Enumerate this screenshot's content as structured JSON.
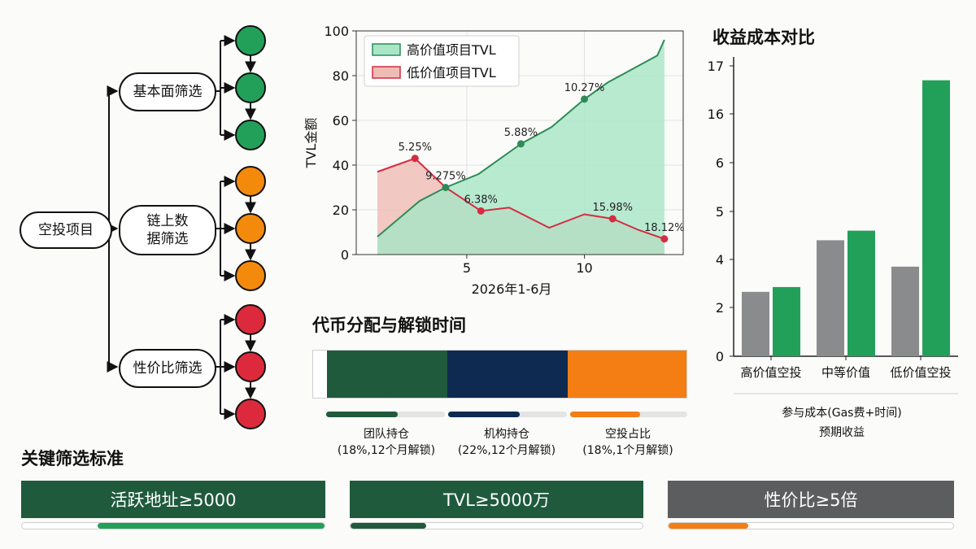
{
  "flow": {
    "root": "空投项目",
    "branches": [
      {
        "label": "基本面筛选",
        "color": "#22a05a",
        "nodes": 3
      },
      {
        "label": "链上数\n据筛选",
        "color": "#f48a0c",
        "nodes": 3
      },
      {
        "label": "性价比筛选",
        "color": "#dc2a3c",
        "nodes": 3
      }
    ]
  },
  "tvl_chart": {
    "ylabel": "TVL金额",
    "xlabel": "2026年1-6月",
    "x_ticks": [
      "5",
      "10"
    ],
    "y_ticks": [
      "0",
      "20",
      "40",
      "60",
      "80",
      "100"
    ],
    "legend": [
      "高价值项目TVL",
      "低价值项目TVL"
    ]
  },
  "cost_chart": {
    "title": "收益成本对比",
    "y_ticks": [
      "0",
      "2",
      "4",
      "5",
      "6",
      "16",
      "17"
    ],
    "categories": [
      "高价值空投",
      "中等价值",
      "低价值空投"
    ],
    "legend": [
      "参与成本(Gas费+时间)",
      "预期收益"
    ]
  },
  "allocation": {
    "title": "代币分配与解锁时间",
    "segments": [
      {
        "name": "团队持仓",
        "detail": "(18%,12个月解锁)",
        "color": "#1f5a3c",
        "unlock": 0.6
      },
      {
        "name": "机构持仓",
        "detail": "(22%,12个月解锁)",
        "color": "#0e2a50",
        "unlock": 0.6
      },
      {
        "name": "空投占比",
        "detail": "(18%,1个月解锁)",
        "color": "#f47d14",
        "unlock": 0.6
      }
    ]
  },
  "criteria": {
    "title": "关键筛选标准",
    "items": [
      {
        "label": "活跃地址≥5000",
        "color": "#1f5a3c",
        "fill_color": "#22a05a",
        "progress_from": 0.25,
        "progress_to": 1.0
      },
      {
        "label": "TVL≥5000万",
        "color": "#1f5a3c",
        "fill_color": "#1f5a3c",
        "progress_from": 0.0,
        "progress_to": 0.26
      },
      {
        "label": "性价比≥5倍",
        "color": "#5c5d5f",
        "fill_color": "#f47d14",
        "progress_from": 0.0,
        "progress_to": 0.28
      }
    ]
  },
  "chart_data": [
    {
      "type": "area",
      "title": "",
      "xlabel": "2026年1-6月",
      "ylabel": "TVL金额",
      "xlim": [
        0.3,
        14.2
      ],
      "ylim": [
        0,
        100
      ],
      "grid": true,
      "legend_position": "top-left",
      "series": [
        {
          "name": "高价值项目TVL",
          "color": "#2e8b57",
          "fill": "#a8e6c6",
          "x": [
            1.2,
            3.0,
            4.1,
            5.5,
            7.3,
            8.6,
            10.0,
            11.0,
            12.4,
            13.1,
            13.4
          ],
          "y": [
            8,
            24,
            30,
            36,
            49.5,
            57,
            69.5,
            77,
            85,
            89,
            96
          ]
        },
        {
          "name": "低价值项目TVL",
          "color": "#d42c43",
          "fill": "#efbcb4",
          "x": [
            1.2,
            2.8,
            4.1,
            5.6,
            6.8,
            8.5,
            10.0,
            11.2,
            12.3,
            13.4
          ],
          "y": [
            37,
            43,
            30,
            19.5,
            21,
            12,
            18,
            16,
            11,
            7
          ]
        }
      ],
      "annotations": [
        {
          "text": "5.25%",
          "x": 2.8,
          "y": 43,
          "series": 1
        },
        {
          "text": "9.275%",
          "x": 4.1,
          "y": 30,
          "series": 0
        },
        {
          "text": "6.38%",
          "x": 5.6,
          "y": 19.5,
          "series": 1
        },
        {
          "text": "5.88%",
          "x": 7.3,
          "y": 49.5,
          "series": 0
        },
        {
          "text": "10.27%",
          "x": 10.0,
          "y": 69.5,
          "series": 0
        },
        {
          "text": "15.98%",
          "x": 11.2,
          "y": 16,
          "series": 1
        },
        {
          "text": "18.12%",
          "x": 13.4,
          "y": 7,
          "series": 1
        }
      ]
    },
    {
      "type": "bar",
      "title": "收益成本对比",
      "categories": [
        "高价值空投",
        "中等价值",
        "低价值空投"
      ],
      "y_tick_labels": [
        "0",
        "2",
        "4",
        "5",
        "6",
        "16",
        "17"
      ],
      "y_axis_note": "tick labels are unevenly spaced; values given as read against printed ticks",
      "series": [
        {
          "name": "参与成本(Gas费+时间)",
          "color": "#8a8b8d",
          "values": [
            2.65,
            4.4,
            3.7
          ]
        },
        {
          "name": "预期收益",
          "color": "#22a05a",
          "values": [
            2.85,
            4.6,
            16.7
          ]
        }
      ],
      "grid": false,
      "legend_position": "bottom"
    },
    {
      "type": "bar",
      "title": "代币分配与解锁时间",
      "categories": [
        "团队持仓",
        "机构持仓",
        "空投占比"
      ],
      "values": [
        18,
        22,
        18
      ],
      "unit": "%",
      "unlock_months": [
        12,
        12,
        1
      ]
    }
  ]
}
